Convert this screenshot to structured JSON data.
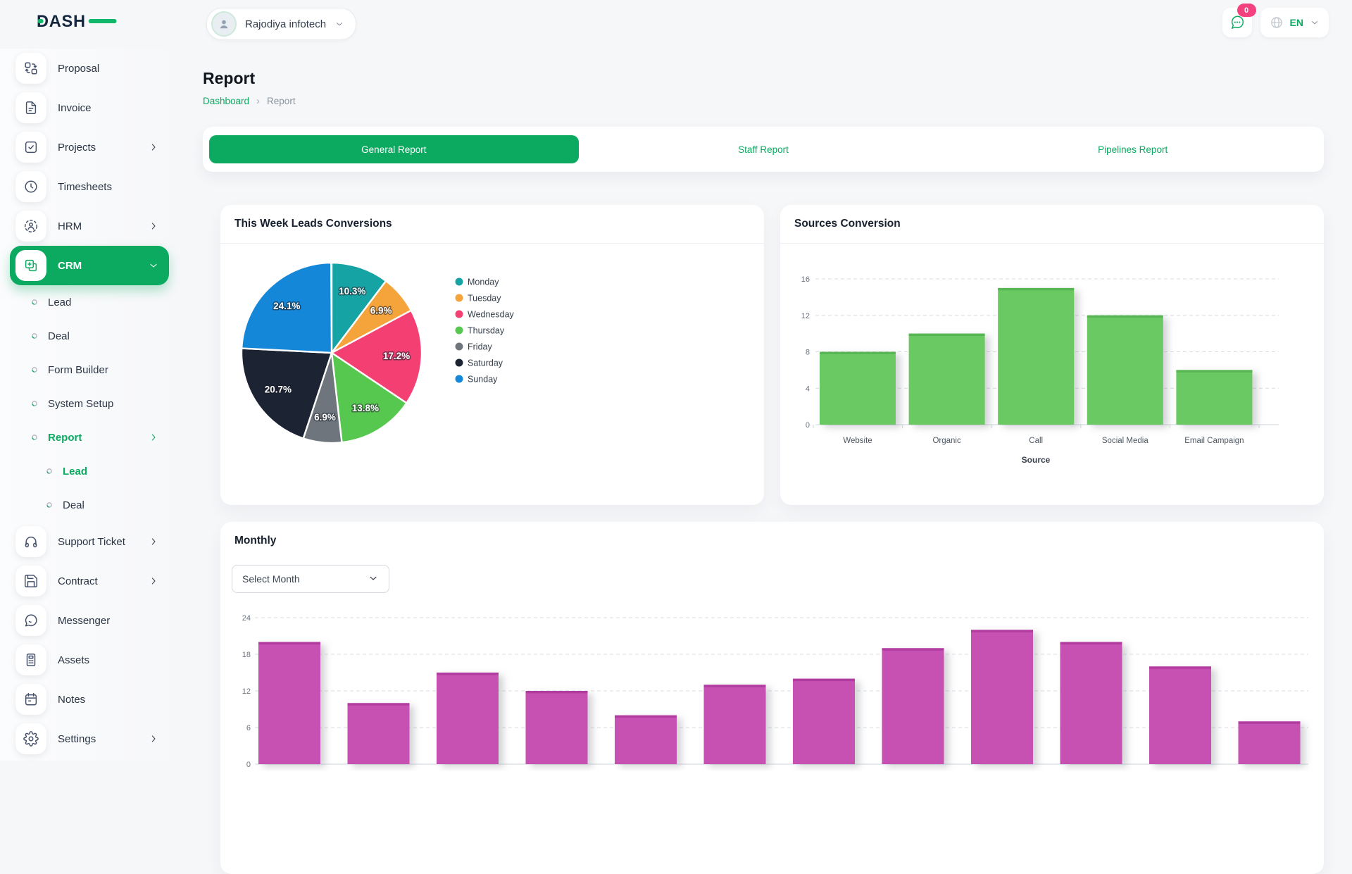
{
  "header": {
    "logo_text": "DASH",
    "company": "Rajodiya infotech",
    "chat_badge": "0",
    "language": "EN"
  },
  "sidebar": {
    "items": [
      {
        "label": "Proposal",
        "icon": "proposal-icon",
        "type": "main"
      },
      {
        "label": "Invoice",
        "icon": "invoice-icon",
        "type": "main"
      },
      {
        "label": "Projects",
        "icon": "projects-icon",
        "type": "main",
        "chevron": "right"
      },
      {
        "label": "Timesheets",
        "icon": "timesheets-icon",
        "type": "main"
      },
      {
        "label": "HRM",
        "icon": "hrm-icon",
        "type": "main",
        "chevron": "right"
      },
      {
        "label": "CRM",
        "icon": "crm-icon",
        "type": "main",
        "chevron": "down",
        "active": true
      },
      {
        "label": "Lead",
        "type": "sub"
      },
      {
        "label": "Deal",
        "type": "sub"
      },
      {
        "label": "Form Builder",
        "type": "sub"
      },
      {
        "label": "System Setup",
        "type": "sub"
      },
      {
        "label": "Report",
        "type": "sub",
        "chevron": "right",
        "active": true
      },
      {
        "label": "Lead",
        "type": "subsub",
        "active": true
      },
      {
        "label": "Deal",
        "type": "subsub"
      },
      {
        "label": "Support Ticket",
        "icon": "support-icon",
        "type": "main",
        "chevron": "right"
      },
      {
        "label": "Contract",
        "icon": "contract-icon",
        "type": "main",
        "chevron": "right"
      },
      {
        "label": "Messenger",
        "icon": "messenger-icon",
        "type": "main"
      },
      {
        "label": "Assets",
        "icon": "assets-icon",
        "type": "main"
      },
      {
        "label": "Notes",
        "icon": "notes-icon",
        "type": "main"
      },
      {
        "label": "Settings",
        "icon": "settings-icon",
        "type": "main",
        "chevron": "right"
      }
    ]
  },
  "page": {
    "title": "Report",
    "breadcrumb_home": "Dashboard",
    "breadcrumb_current": "Report"
  },
  "tabs": [
    {
      "label": "General Report",
      "active": true
    },
    {
      "label": "Staff Report",
      "active": false
    },
    {
      "label": "Pipelines Report",
      "active": false
    }
  ],
  "cards": {
    "pie_title": "This Week Leads Conversions",
    "sources_title": "Sources Conversion",
    "monthly_title": "Monthly",
    "month_select": "Select Month"
  },
  "colors": {
    "primary": "#0caa61",
    "logo_navy": "#15273f",
    "logo_green": "#12b76a",
    "badge_pink": "#f4427e",
    "sources_bar": "#6bc963",
    "sources_bar_cap": "#58b754",
    "monthly_bar": "#c751b3",
    "monthly_bar_cap": "#b23da0"
  },
  "chart_data": [
    {
      "type": "pie",
      "title": "This Week Leads Conversions",
      "labels": [
        "Monday",
        "Tuesday",
        "Wednesday",
        "Thursday",
        "Friday",
        "Saturday",
        "Sunday"
      ],
      "values_percent": [
        10.3,
        6.9,
        17.2,
        13.8,
        6.9,
        20.7,
        24.1
      ],
      "colors": [
        "#16a3a3",
        "#f5a43c",
        "#f43f73",
        "#57c84f",
        "#6e757c",
        "#1c2333",
        "#1587d8"
      ],
      "legend_position": "right"
    },
    {
      "type": "bar",
      "title": "Sources Conversion",
      "categories": [
        "Website",
        "Organic",
        "Call",
        "Social Media",
        "Email Campaign"
      ],
      "values": [
        8,
        10,
        15,
        12,
        6
      ],
      "xlabel": "Source",
      "ylim": [
        0,
        16
      ],
      "yticks": [
        0,
        4,
        8,
        12,
        16
      ],
      "bar_color": "#6bc963",
      "grid": "dashed-horizontal"
    },
    {
      "type": "bar",
      "title": "Monthly",
      "values": [
        20,
        10,
        15,
        12,
        8,
        13,
        14,
        19,
        22,
        20,
        16,
        7
      ],
      "ylim": [
        0,
        24
      ],
      "yticks": [
        0,
        6,
        12,
        18,
        24
      ],
      "bar_color": "#c751b3",
      "grid": "dashed-horizontal"
    }
  ]
}
